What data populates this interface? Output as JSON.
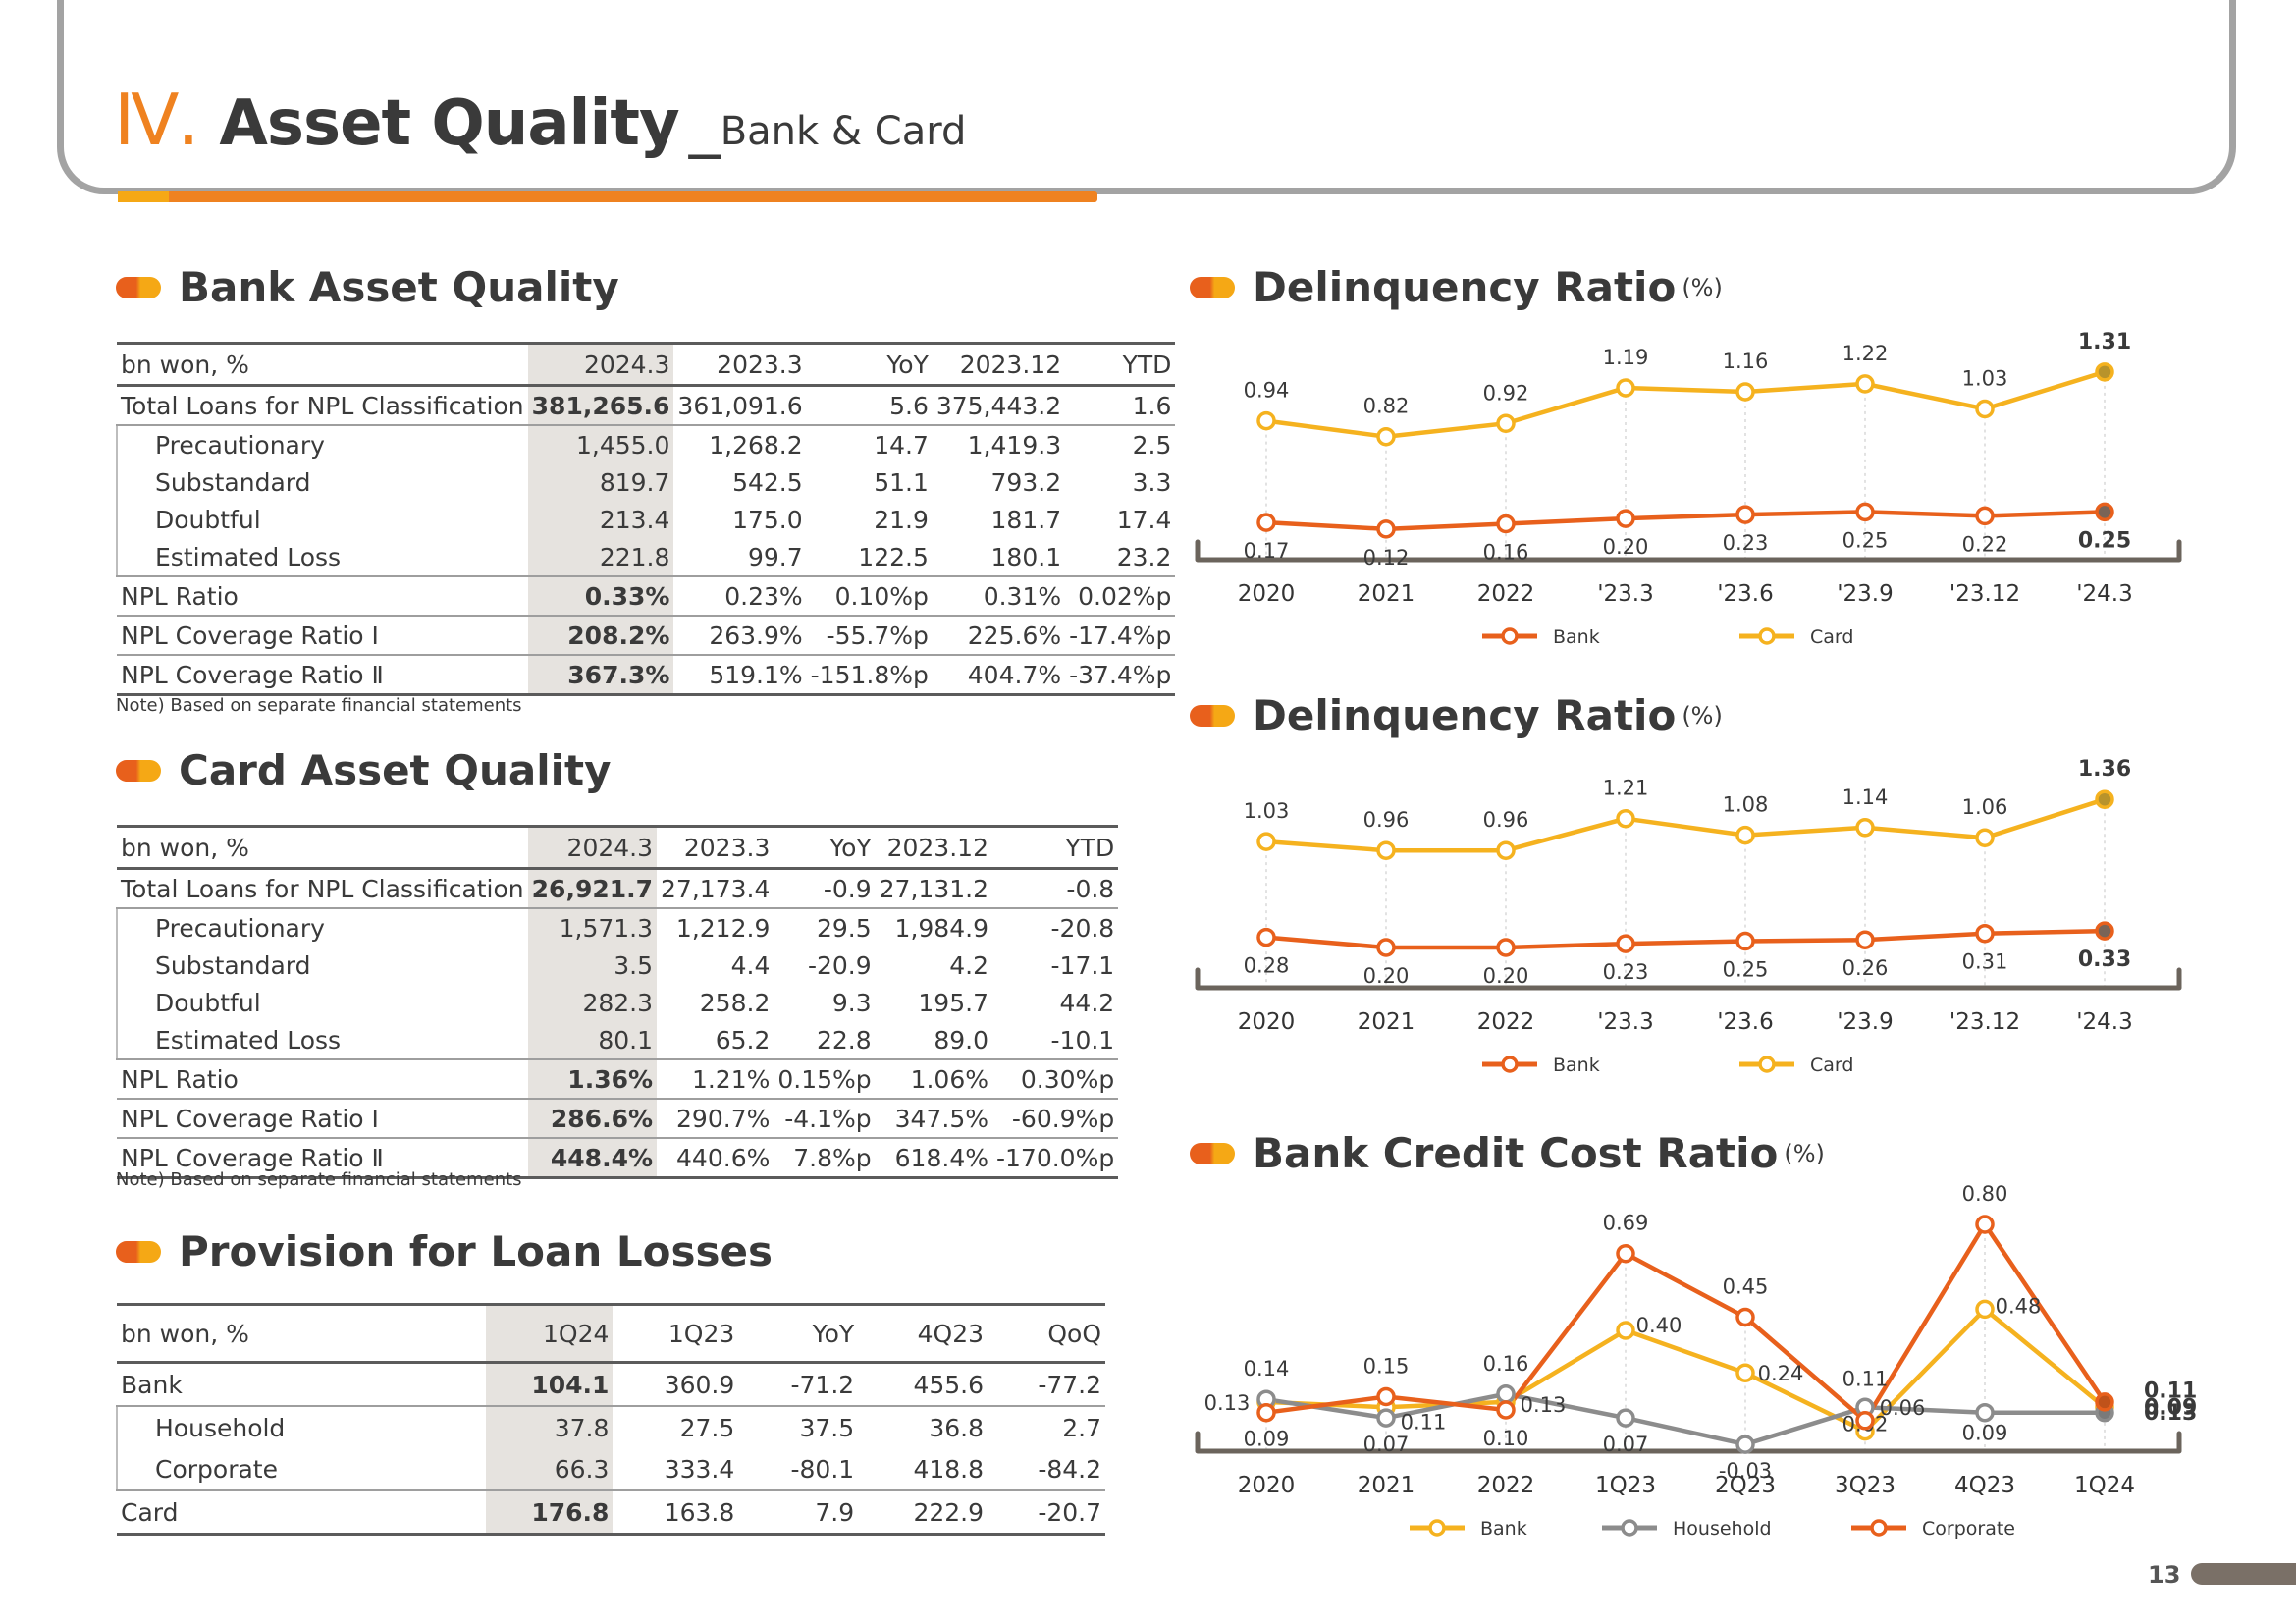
{
  "header": {
    "number": "Ⅳ.",
    "title": "Asset Quality",
    "separator": "_",
    "subtitle": "Bank & Card"
  },
  "bank_asset_quality": {
    "heading": "Bank Asset Quality",
    "columns": [
      "bn won, %",
      "2024.3",
      "2023.3",
      "YoY",
      "2023.12",
      "YTD"
    ],
    "rows": [
      {
        "label": "Total Loans for NPL Classification",
        "values": [
          "381,265.6",
          "361,091.6",
          "5.6",
          "375,443.2",
          "1.6"
        ]
      },
      {
        "label": "Precautionary",
        "values": [
          "1,455.0",
          "1,268.2",
          "14.7",
          "1,419.3",
          "2.5"
        ]
      },
      {
        "label": "Substandard",
        "values": [
          "819.7",
          "542.5",
          "51.1",
          "793.2",
          "3.3"
        ]
      },
      {
        "label": "Doubtful",
        "values": [
          "213.4",
          "175.0",
          "21.9",
          "181.7",
          "17.4"
        ]
      },
      {
        "label": "Estimated Loss",
        "values": [
          "221.8",
          "99.7",
          "122.5",
          "180.1",
          "23.2"
        ]
      },
      {
        "label": "NPL Ratio",
        "values": [
          "0.33%",
          "0.23%",
          "0.10%p",
          "0.31%",
          "0.02%p"
        ]
      },
      {
        "label": "NPL Coverage Ratio Ⅰ",
        "values": [
          "208.2%",
          "263.9%",
          "-55.7%p",
          "225.6%",
          "-17.4%p"
        ]
      },
      {
        "label": "NPL Coverage Ratio Ⅱ",
        "values": [
          "367.3%",
          "519.1%",
          "-151.8%p",
          "404.7%",
          "-37.4%p"
        ]
      }
    ],
    "note": "Note) Based on separate financial statements"
  },
  "card_asset_quality": {
    "heading": "Card Asset Quality",
    "columns": [
      "bn won, %",
      "2024.3",
      "2023.3",
      "YoY",
      "2023.12",
      "YTD"
    ],
    "rows": [
      {
        "label": "Total Loans for NPL Classification",
        "values": [
          "26,921.7",
          "27,173.4",
          "-0.9",
          "27,131.2",
          "-0.8"
        ]
      },
      {
        "label": "Precautionary",
        "values": [
          "1,571.3",
          "1,212.9",
          "29.5",
          "1,984.9",
          "-20.8"
        ]
      },
      {
        "label": "Substandard",
        "values": [
          "3.5",
          "4.4",
          "-20.9",
          "4.2",
          "-17.1"
        ]
      },
      {
        "label": "Doubtful",
        "values": [
          "282.3",
          "258.2",
          "9.3",
          "195.7",
          "44.2"
        ]
      },
      {
        "label": "Estimated Loss",
        "values": [
          "80.1",
          "65.2",
          "22.8",
          "89.0",
          "-10.1"
        ]
      },
      {
        "label": "NPL Ratio",
        "values": [
          "1.36%",
          "1.21%",
          "0.15%p",
          "1.06%",
          "0.30%p"
        ]
      },
      {
        "label": "NPL Coverage Ratio Ⅰ",
        "values": [
          "286.6%",
          "290.7%",
          "-4.1%p",
          "347.5%",
          "-60.9%p"
        ]
      },
      {
        "label": "NPL Coverage Ratio Ⅱ",
        "values": [
          "448.4%",
          "440.6%",
          "7.8%p",
          "618.4%",
          "-170.0%p"
        ]
      }
    ],
    "note": "Note) Based on separate financial statements"
  },
  "provision": {
    "heading": "Provision for Loan Losses",
    "columns": [
      "bn won, %",
      "1Q24",
      "1Q23",
      "YoY",
      "4Q23",
      "QoQ"
    ],
    "rows": [
      {
        "label": "Bank",
        "values": [
          "104.1",
          "360.9",
          "-71.2",
          "455.6",
          "-77.2"
        ]
      },
      {
        "label": "Household",
        "values": [
          "37.8",
          "27.5",
          "37.5",
          "36.8",
          "2.7"
        ]
      },
      {
        "label": "Corporate",
        "values": [
          "66.3",
          "333.4",
          "-80.1",
          "418.8",
          "-84.2"
        ]
      },
      {
        "label": "Card",
        "values": [
          "176.8",
          "163.8",
          "7.9",
          "222.9",
          "-20.7"
        ]
      }
    ]
  },
  "colors": {
    "orange": "#e8601c",
    "yellow": "#f5b21f",
    "gray": "#8c8c8c",
    "accent": "#ef8220"
  },
  "chart_data": [
    {
      "type": "line",
      "title": "Delinquency Ratio",
      "unit": "(%)",
      "categories": [
        "2020",
        "2021",
        "2022",
        "'23.3",
        "'23.6",
        "'23.9",
        "'23.12",
        "'24.3"
      ],
      "series": [
        {
          "name": "Bank",
          "color": "#e8601c",
          "values": [
            0.17,
            0.12,
            0.16,
            0.2,
            0.23,
            0.25,
            0.22,
            0.25
          ]
        },
        {
          "name": "Card",
          "color": "#f5b21f",
          "values": [
            0.94,
            0.82,
            0.92,
            1.19,
            1.16,
            1.22,
            1.03,
            1.31
          ]
        }
      ],
      "ylim": [
        0,
        1.45
      ]
    },
    {
      "type": "line",
      "title": "Delinquency Ratio",
      "unit": "(%)",
      "categories": [
        "2020",
        "2021",
        "2022",
        "'23.3",
        "'23.6",
        "'23.9",
        "'23.12",
        "'24.3"
      ],
      "series": [
        {
          "name": "Bank",
          "color": "#e8601c",
          "values": [
            0.28,
            0.2,
            0.2,
            0.23,
            0.25,
            0.26,
            0.31,
            0.33
          ]
        },
        {
          "name": "Card",
          "color": "#f5b21f",
          "values": [
            1.03,
            0.96,
            0.96,
            1.21,
            1.08,
            1.14,
            1.06,
            1.36
          ]
        }
      ],
      "ylim": [
        0,
        1.5
      ]
    },
    {
      "type": "line",
      "title": "Bank Credit Cost Ratio",
      "unit": "(%)",
      "categories": [
        "2020",
        "2021",
        "2022",
        "1Q23",
        "2Q23",
        "3Q23",
        "4Q23",
        "1Q24"
      ],
      "series": [
        {
          "name": "Bank",
          "color": "#f5b21f",
          "values": [
            0.13,
            0.11,
            0.13,
            0.4,
            0.24,
            0.02,
            0.48,
            0.11
          ]
        },
        {
          "name": "Household",
          "color": "#8c8c8c",
          "values": [
            0.14,
            0.07,
            0.16,
            0.07,
            -0.03,
            0.11,
            0.09,
            0.09
          ]
        },
        {
          "name": "Corporate",
          "color": "#e8601c",
          "values": [
            0.09,
            0.15,
            0.1,
            0.69,
            0.45,
            0.06,
            0.8,
            0.13
          ]
        }
      ],
      "ylim": [
        -0.1,
        0.9
      ]
    }
  ]
}
